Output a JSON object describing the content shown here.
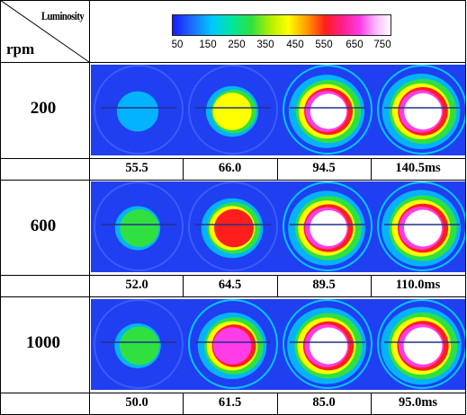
{
  "header": {
    "column_label": "Luminosity",
    "row_label": "rpm",
    "colorbar_ticks": [
      "50",
      "150",
      "250",
      "350",
      "450",
      "550",
      "650",
      "750"
    ],
    "colorbar_colors": [
      "#1a1aff",
      "#00c8ff",
      "#30e040",
      "#ffff00",
      "#ff1e1e",
      "#ff3ce6",
      "#ffffff"
    ]
  },
  "rows": [
    {
      "rpm": "200",
      "times": [
        "55.5",
        "66.0",
        "94.5",
        "140.5ms"
      ],
      "intensity": [
        0.12,
        0.35,
        0.85,
        0.9
      ]
    },
    {
      "rpm": "600",
      "times": [
        "52.0",
        "64.5",
        "89.5",
        "110.0ms"
      ],
      "intensity": [
        0.2,
        0.55,
        0.88,
        0.92
      ]
    },
    {
      "rpm": "1000",
      "times": [
        "50.0",
        "61.5",
        "85.0",
        "95.0ms"
      ],
      "intensity": [
        0.22,
        0.7,
        0.92,
        0.95
      ]
    }
  ]
}
